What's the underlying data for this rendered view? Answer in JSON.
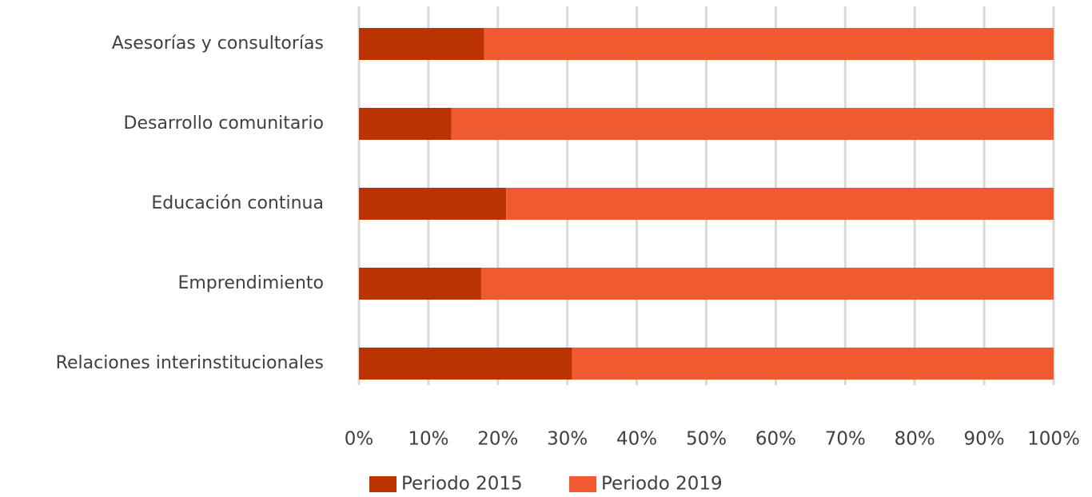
{
  "chart_data": {
    "type": "stacked_barh",
    "categories": [
      "Asesorías y consultorías",
      "Desarrollo comunitario",
      "Educación continua",
      "Emprendimiento",
      "Relaciones interinstitucionales"
    ],
    "series": [
      {
        "name": "Periodo 2015",
        "color": "#bb3300",
        "values": [
          18,
          13.3,
          21.2,
          17.6,
          30.7
        ]
      },
      {
        "name": "Periodo 2019",
        "color": "#f15a31",
        "values": [
          82,
          86.7,
          78.8,
          82.4,
          69.3
        ]
      }
    ],
    "xlim": [
      0,
      100
    ],
    "xticks": [
      {
        "value": 0,
        "label": "0%"
      },
      {
        "value": 10,
        "label": "10%"
      },
      {
        "value": 20,
        "label": "20%"
      },
      {
        "value": 30,
        "label": "30%"
      },
      {
        "value": 40,
        "label": "40%"
      },
      {
        "value": 50,
        "label": "50%"
      },
      {
        "value": 60,
        "label": "60%"
      },
      {
        "value": 70,
        "label": "70%"
      },
      {
        "value": 80,
        "label": "80%"
      },
      {
        "value": 90,
        "label": "90%"
      },
      {
        "value": 100,
        "label": "100%"
      }
    ],
    "grid": true,
    "legend": "bottom"
  }
}
